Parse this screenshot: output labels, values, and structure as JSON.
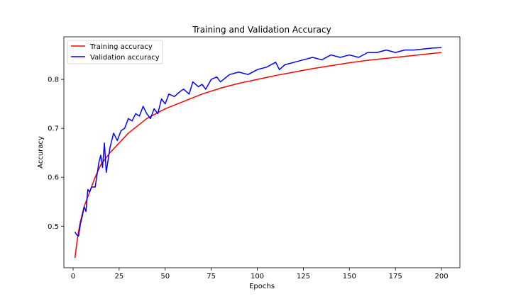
{
  "chart_data": {
    "type": "line",
    "title": "Training and Validation Accuracy",
    "xlabel": "Epochs",
    "ylabel": "Accuracy",
    "xlim": [
      -5,
      210
    ],
    "ylim": [
      0.415,
      0.887
    ],
    "xticks": [
      0,
      25,
      50,
      75,
      100,
      125,
      150,
      175,
      200
    ],
    "yticks": [
      0.5,
      0.6,
      0.7,
      0.8
    ],
    "ytick_labels": [
      "0.5",
      "0.6",
      "0.7",
      "0.8"
    ],
    "grid": false,
    "legend_position": "upper-left",
    "series": [
      {
        "name": "Training accuracy",
        "color": "#ff0000",
        "anchors": [
          [
            1,
            0.435
          ],
          [
            2,
            0.465
          ],
          [
            3,
            0.49
          ],
          [
            4,
            0.51
          ],
          [
            5,
            0.525
          ],
          [
            6,
            0.54
          ],
          [
            8,
            0.56
          ],
          [
            10,
            0.58
          ],
          [
            12,
            0.6
          ],
          [
            15,
            0.625
          ],
          [
            20,
            0.65
          ],
          [
            25,
            0.67
          ],
          [
            30,
            0.69
          ],
          [
            35,
            0.705
          ],
          [
            40,
            0.72
          ],
          [
            45,
            0.73
          ],
          [
            50,
            0.74
          ],
          [
            60,
            0.755
          ],
          [
            70,
            0.77
          ],
          [
            80,
            0.782
          ],
          [
            90,
            0.792
          ],
          [
            100,
            0.8
          ],
          [
            110,
            0.808
          ],
          [
            120,
            0.815
          ],
          [
            130,
            0.822
          ],
          [
            140,
            0.828
          ],
          [
            150,
            0.834
          ],
          [
            160,
            0.839
          ],
          [
            170,
            0.843
          ],
          [
            180,
            0.847
          ],
          [
            190,
            0.851
          ],
          [
            200,
            0.855
          ]
        ]
      },
      {
        "name": "Validation accuracy",
        "color": "#0000ff",
        "anchors": [
          [
            1,
            0.488
          ],
          [
            2,
            0.482
          ],
          [
            3,
            0.48
          ],
          [
            4,
            0.505
          ],
          [
            5,
            0.52
          ],
          [
            6,
            0.54
          ],
          [
            7,
            0.53
          ],
          [
            8,
            0.575
          ],
          [
            9,
            0.57
          ],
          [
            10,
            0.58
          ],
          [
            12,
            0.58
          ],
          [
            14,
            0.63
          ],
          [
            15,
            0.645
          ],
          [
            16,
            0.62
          ],
          [
            17,
            0.67
          ],
          [
            18,
            0.61
          ],
          [
            20,
            0.66
          ],
          [
            22,
            0.69
          ],
          [
            24,
            0.675
          ],
          [
            26,
            0.695
          ],
          [
            28,
            0.7
          ],
          [
            30,
            0.72
          ],
          [
            32,
            0.715
          ],
          [
            34,
            0.73
          ],
          [
            36,
            0.725
          ],
          [
            38,
            0.745
          ],
          [
            40,
            0.73
          ],
          [
            42,
            0.72
          ],
          [
            44,
            0.74
          ],
          [
            46,
            0.73
          ],
          [
            48,
            0.76
          ],
          [
            50,
            0.75
          ],
          [
            52,
            0.77
          ],
          [
            55,
            0.765
          ],
          [
            58,
            0.775
          ],
          [
            60,
            0.78
          ],
          [
            63,
            0.77
          ],
          [
            65,
            0.795
          ],
          [
            68,
            0.785
          ],
          [
            70,
            0.79
          ],
          [
            72,
            0.78
          ],
          [
            75,
            0.8
          ],
          [
            78,
            0.805
          ],
          [
            80,
            0.795
          ],
          [
            85,
            0.81
          ],
          [
            90,
            0.815
          ],
          [
            95,
            0.81
          ],
          [
            100,
            0.82
          ],
          [
            105,
            0.825
          ],
          [
            110,
            0.835
          ],
          [
            112,
            0.82
          ],
          [
            115,
            0.83
          ],
          [
            120,
            0.835
          ],
          [
            125,
            0.84
          ],
          [
            130,
            0.845
          ],
          [
            135,
            0.84
          ],
          [
            140,
            0.85
          ],
          [
            145,
            0.845
          ],
          [
            150,
            0.85
          ],
          [
            155,
            0.845
          ],
          [
            160,
            0.855
          ],
          [
            165,
            0.855
          ],
          [
            170,
            0.86
          ],
          [
            175,
            0.855
          ],
          [
            180,
            0.86
          ],
          [
            185,
            0.86
          ],
          [
            190,
            0.862
          ],
          [
            195,
            0.864
          ],
          [
            200,
            0.865
          ]
        ]
      }
    ]
  }
}
